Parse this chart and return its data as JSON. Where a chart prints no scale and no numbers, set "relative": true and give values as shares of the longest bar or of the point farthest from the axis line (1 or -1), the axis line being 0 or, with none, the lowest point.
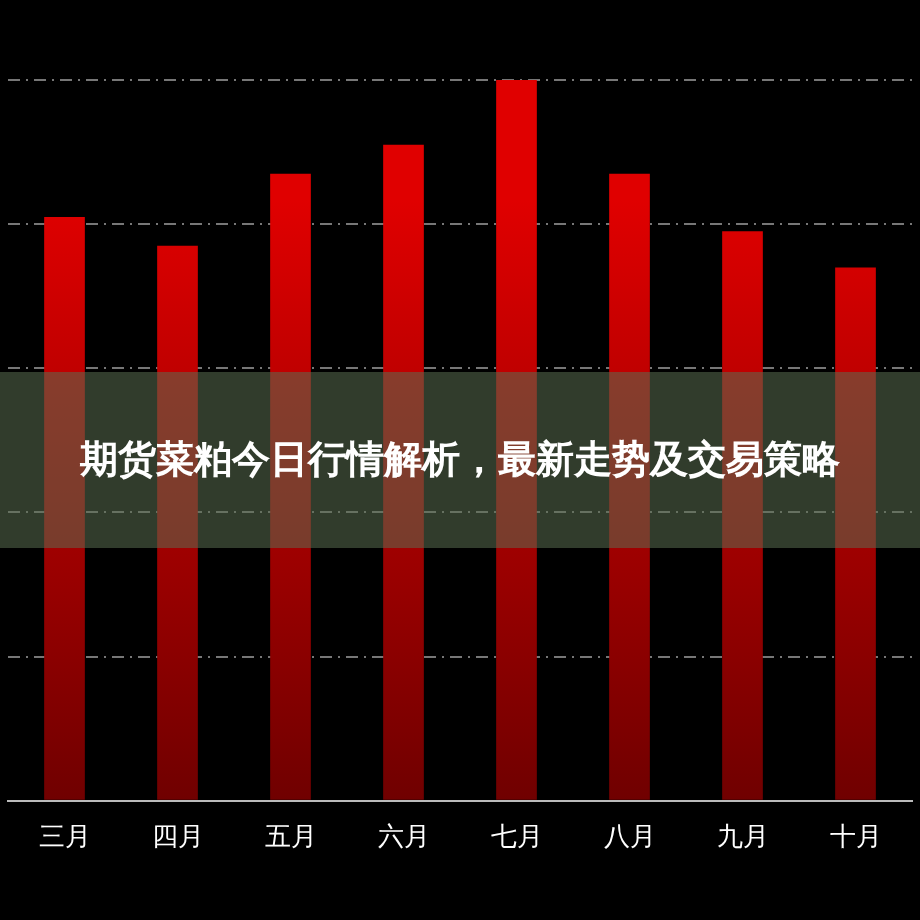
{
  "chart_data": {
    "type": "bar",
    "title": "期货菜粕今日行情解析，最新走势及交易策略",
    "categories": [
      "三月",
      "四月",
      "五月",
      "六月",
      "七月",
      "八月",
      "九月",
      "十月"
    ],
    "values": [
      0.81,
      0.77,
      0.87,
      0.91,
      1,
      0.87,
      0.79,
      0.74
    ],
    "color": "#e00000",
    "relative": true,
    "grid": "y",
    "legend": false
  }
}
